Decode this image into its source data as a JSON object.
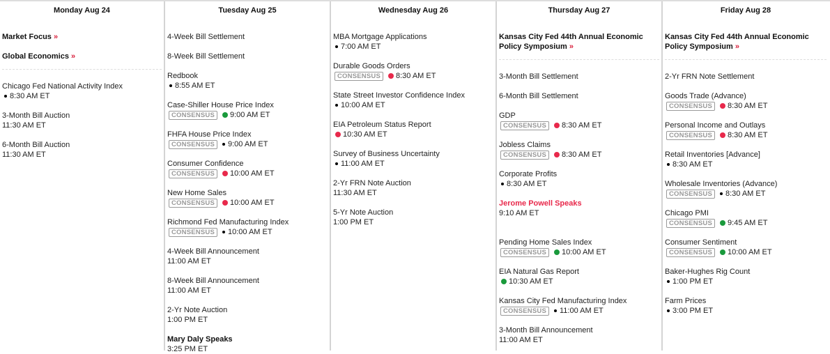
{
  "colors": {
    "accent": "#e8294b",
    "high": "#e8294b",
    "medium": "#1a9a3c",
    "low": "#000000"
  },
  "consensus_label": "CONSENSUS",
  "days": [
    {
      "header": "Monday Aug 24",
      "featured": [
        {
          "label": "Market Focus",
          "arrow": "»"
        },
        {
          "label": "Global Economics",
          "arrow": "»"
        }
      ],
      "events": [
        {
          "name": "Chicago Fed National Activity Index",
          "dot": "black",
          "time": "8:30 AM ET"
        },
        {
          "name": "3-Month Bill Auction",
          "time": "11:30 AM ET"
        },
        {
          "name": "6-Month Bill Auction",
          "time": "11:30 AM ET"
        }
      ]
    },
    {
      "header": "Tuesday Aug 25",
      "featured": [],
      "events": [
        {
          "name": "4-Week Bill Settlement"
        },
        {
          "name": "8-Week Bill Settlement"
        },
        {
          "name": "Redbook",
          "dot": "black",
          "time": "8:55 AM ET"
        },
        {
          "name": "Case-Shiller House Price Index",
          "consensus": true,
          "dot": "green",
          "time": "9:00 AM ET"
        },
        {
          "name": "FHFA House Price Index",
          "consensus": true,
          "dot": "black",
          "time": "9:00 AM ET"
        },
        {
          "name": "Consumer Confidence",
          "consensus": true,
          "dot": "red",
          "time": "10:00 AM ET"
        },
        {
          "name": "New Home Sales",
          "consensus": true,
          "dot": "red",
          "time": "10:00 AM ET"
        },
        {
          "name": "Richmond Fed Manufacturing Index",
          "consensus": true,
          "dot": "black",
          "time": "10:00 AM ET"
        },
        {
          "name": "4-Week Bill Announcement",
          "time": "11:00 AM ET"
        },
        {
          "name": "8-Week Bill Announcement",
          "time": "11:00 AM ET"
        },
        {
          "name": "2-Yr Note Auction",
          "time": "1:00 PM ET"
        },
        {
          "name": "Mary Daly Speaks",
          "speaker": "black",
          "time": "3:25 PM ET"
        }
      ]
    },
    {
      "header": "Wednesday Aug 26",
      "featured": [],
      "events": [
        {
          "name": "MBA Mortgage Applications",
          "dot": "black",
          "time": "7:00 AM ET"
        },
        {
          "name": "Durable Goods Orders",
          "consensus": true,
          "dot": "red",
          "time": "8:30 AM ET"
        },
        {
          "name": "State Street Investor Confidence Index",
          "dot": "black",
          "time": "10:00 AM ET"
        },
        {
          "name": "EIA Petroleum Status Report",
          "dot": "red",
          "time": "10:30 AM ET"
        },
        {
          "name": "Survey of Business Uncertainty",
          "dot": "black",
          "time": "11:00 AM ET"
        },
        {
          "name": "2-Yr FRN Note Auction",
          "time": "11:30 AM ET"
        },
        {
          "name": "5-Yr Note Auction",
          "time": "1:00 PM ET"
        }
      ]
    },
    {
      "header": "Thursday Aug 27",
      "featured": [
        {
          "label": "Kansas City Fed 44th Annual Economic Policy Symposium",
          "arrow": "»"
        }
      ],
      "events": [
        {
          "name": "3-Month Bill Settlement"
        },
        {
          "name": "6-Month Bill Settlement"
        },
        {
          "name": "GDP",
          "consensus": true,
          "dot": "red",
          "time": "8:30 AM ET"
        },
        {
          "name": "Jobless Claims",
          "consensus": true,
          "dot": "red",
          "time": "8:30 AM ET"
        },
        {
          "name": "Corporate Profits",
          "dot": "black",
          "time": "8:30 AM ET"
        },
        {
          "name": "Jerome Powell Speaks",
          "speaker": "red",
          "time": "9:10 AM ET",
          "gap": true
        },
        {
          "name": "Pending Home Sales Index",
          "consensus": true,
          "dot": "green",
          "time": "10:00 AM ET"
        },
        {
          "name": "EIA Natural Gas Report",
          "dot": "green",
          "time": "10:30 AM ET"
        },
        {
          "name": "Kansas City Fed Manufacturing Index",
          "consensus": true,
          "dot": "black",
          "time": "11:00 AM ET"
        },
        {
          "name": "3-Month Bill Announcement",
          "time": "11:00 AM ET"
        }
      ]
    },
    {
      "header": "Friday Aug 28",
      "featured": [
        {
          "label": "Kansas City Fed 44th Annual Economic Policy Symposium",
          "arrow": "»"
        }
      ],
      "events": [
        {
          "name": "2-Yr FRN Note Settlement"
        },
        {
          "name": "Goods Trade (Advance)",
          "consensus": true,
          "dot": "red",
          "time": "8:30 AM ET"
        },
        {
          "name": "Personal Income and Outlays",
          "consensus": true,
          "dot": "red",
          "time": "8:30 AM ET"
        },
        {
          "name": "Retail Inventories [Advance]",
          "dot": "black",
          "time": "8:30 AM ET"
        },
        {
          "name": "Wholesale Inventories (Advance)",
          "consensus": true,
          "dot": "black",
          "time": "8:30 AM ET"
        },
        {
          "name": "Chicago PMI",
          "consensus": true,
          "dot": "green",
          "time": "9:45 AM ET"
        },
        {
          "name": "Consumer Sentiment",
          "consensus": true,
          "dot": "green",
          "time": "10:00 AM ET"
        },
        {
          "name": "Baker-Hughes Rig Count",
          "dot": "black",
          "time": "1:00 PM ET"
        },
        {
          "name": "Farm Prices",
          "dot": "black",
          "time": "3:00 PM ET"
        }
      ]
    }
  ]
}
